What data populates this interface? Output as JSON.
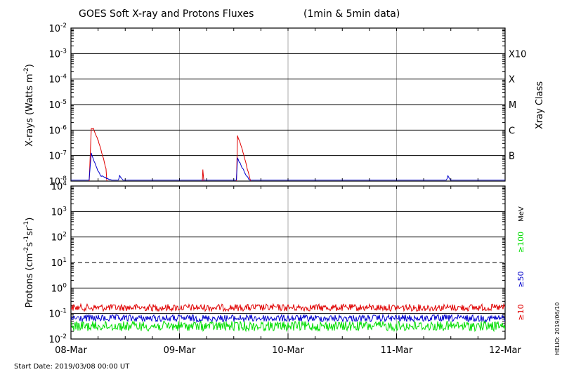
{
  "chart_data": [
    {
      "type": "line",
      "title": "GOES Soft X-ray and Protons Fluxes",
      "subtitle": "(1min & 5min data)",
      "ylabel": "X-rays (Watts m",
      "ylabel_sup": "-2",
      "ylabel_close": ")",
      "yscale": "log",
      "ylim": [
        1e-08,
        0.01
      ],
      "y_tick_labels": [
        {
          "base": "10",
          "exp": "-8",
          "value": 1e-08
        },
        {
          "base": "10",
          "exp": "-7",
          "value": 1e-07
        },
        {
          "base": "10",
          "exp": "-6",
          "value": 1e-06
        },
        {
          "base": "10",
          "exp": "-5",
          "value": 1e-05
        },
        {
          "base": "10",
          "exp": "-4",
          "value": 0.0001
        },
        {
          "base": "10",
          "exp": "-3",
          "value": 0.001
        },
        {
          "base": "10",
          "exp": "-2",
          "value": 0.01
        }
      ],
      "right_axis_label": "Xray Class",
      "class_labels": [
        {
          "label": "B",
          "value": 1e-07
        },
        {
          "label": "C",
          "value": 1e-06
        },
        {
          "label": "M",
          "value": 1e-05
        },
        {
          "label": "X",
          "value": 0.0001
        },
        {
          "label": "X10",
          "value": 0.001
        }
      ],
      "grid": true,
      "series": [
        {
          "color": "#e00000",
          "points": [
            [
              "2019-03-08 00:00",
              7e-09
            ],
            [
              "2019-03-08 04:00",
              7e-09
            ],
            [
              "2019-03-08 04:30",
              1.2e-06
            ],
            [
              "2019-03-08 05:00",
              1.1e-06
            ],
            [
              "2019-03-08 06:00",
              4e-07
            ],
            [
              "2019-03-08 07:00",
              1e-07
            ],
            [
              "2019-03-08 07:45",
              3e-08
            ],
            [
              "2019-03-08 08:00",
              7e-09
            ],
            [
              "2019-03-09 05:00",
              7e-09
            ],
            [
              "2019-03-09 05:10",
              2.8e-08
            ],
            [
              "2019-03-09 05:30",
              7e-09
            ],
            [
              "2019-03-09 12:35",
              7e-09
            ],
            [
              "2019-03-09 12:50",
              6e-07
            ],
            [
              "2019-03-09 14:00",
              1.5e-07
            ],
            [
              "2019-03-09 15:00",
              3e-08
            ],
            [
              "2019-03-09 15:45",
              1e-08
            ],
            [
              "2019-03-09 16:00",
              7e-09
            ],
            [
              "2019-03-12 00:00",
              7e-09
            ]
          ]
        },
        {
          "color": "#0000cc",
          "points": [
            [
              "2019-03-08 00:00",
              1.1e-08
            ],
            [
              "2019-03-08 04:00",
              1.1e-08
            ],
            [
              "2019-03-08 04:30",
              1.2e-07
            ],
            [
              "2019-03-08 05:30",
              4e-08
            ],
            [
              "2019-03-08 06:30",
              1.6e-08
            ],
            [
              "2019-03-08 09:00",
              1.1e-08
            ],
            [
              "2019-03-08 10:30",
              1.1e-08
            ],
            [
              "2019-03-08 10:45",
              1.6e-08
            ],
            [
              "2019-03-08 11:30",
              1.1e-08
            ],
            [
              "2019-03-09 12:35",
              1.1e-08
            ],
            [
              "2019-03-09 12:50",
              8e-08
            ],
            [
              "2019-03-09 14:30",
              2e-08
            ],
            [
              "2019-03-09 15:30",
              1.1e-08
            ],
            [
              "2019-03-11 11:00",
              1.1e-08
            ],
            [
              "2019-03-11 11:20",
              1.6e-08
            ],
            [
              "2019-03-11 12:00",
              1.1e-08
            ],
            [
              "2019-03-12 00:00",
              1.1e-08
            ]
          ]
        }
      ]
    },
    {
      "type": "line",
      "ylabel": "Protons (cm",
      "ylabel_parts": [
        {
          "text": "Protons (cm",
          "sup": false
        },
        {
          "text": "-2",
          "sup": true
        },
        {
          "text": "s",
          "sup": false
        },
        {
          "text": "-1",
          "sup": true
        },
        {
          "text": "sr",
          "sup": false
        },
        {
          "text": "-1",
          "sup": true
        },
        {
          "text": ")",
          "sup": false
        }
      ],
      "yscale": "log",
      "ylim": [
        0.01,
        10000
      ],
      "y_tick_labels": [
        {
          "base": "10",
          "exp": "-2",
          "value": 0.01
        },
        {
          "base": "10",
          "exp": "-1",
          "value": 0.1
        },
        {
          "base": "10",
          "exp": "0",
          "value": 1
        },
        {
          "base": "10",
          "exp": "1",
          "value": 10
        },
        {
          "base": "10",
          "exp": "2",
          "value": 100
        },
        {
          "base": "10",
          "exp": "3",
          "value": 1000
        },
        {
          "base": "10",
          "exp": "4",
          "value": 10000
        }
      ],
      "threshold": {
        "value": 10,
        "style": "dashed"
      },
      "right_axis_unit": "MeV",
      "x_tick_labels": [
        "08-Mar",
        "09-Mar",
        "10-Mar",
        "11-Mar",
        "12-Mar"
      ],
      "xlim": [
        "2019-03-08 00:00",
        "2019-03-12 00:00"
      ],
      "grid": true,
      "series": [
        {
          "name": "≥10",
          "color": "#e00000",
          "level": 0.17
        },
        {
          "name": "≥50",
          "color": "#0000cc",
          "level": 0.065
        },
        {
          "name": "≥100",
          "color": "#00dd00",
          "level": 0.032
        }
      ]
    }
  ],
  "footer": {
    "start_date": "Start Date: 2019/03/08 00:00 UT",
    "credit": "HELIO: 2019/06/10"
  }
}
